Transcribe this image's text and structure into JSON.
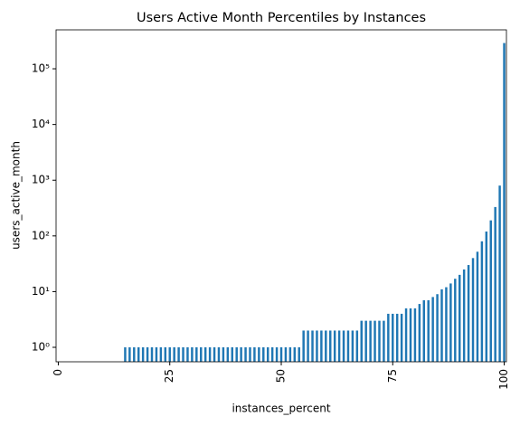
{
  "chart_data": {
    "type": "bar",
    "title": "Users Active Month Percentiles by Instances",
    "x_label": "instances_percent",
    "y_label": "users_active_month",
    "categories": [
      "0",
      null,
      null,
      null,
      null,
      null,
      null,
      null,
      null,
      null,
      null,
      null,
      null,
      null,
      null,
      null,
      null,
      null,
      null,
      null,
      null,
      null,
      null,
      null,
      null,
      "25",
      null,
      null,
      null,
      null,
      null,
      null,
      null,
      null,
      null,
      null,
      null,
      null,
      null,
      null,
      null,
      null,
      null,
      null,
      null,
      null,
      null,
      null,
      null,
      null,
      "50",
      null,
      null,
      null,
      null,
      null,
      null,
      null,
      null,
      null,
      null,
      null,
      null,
      null,
      null,
      null,
      null,
      null,
      null,
      null,
      null,
      null,
      null,
      null,
      null,
      "75",
      null,
      null,
      null,
      null,
      null,
      null,
      null,
      null,
      null,
      null,
      null,
      null,
      null,
      null,
      null,
      null,
      null,
      null,
      null,
      null,
      null,
      null,
      null,
      null,
      "100"
    ],
    "values": [
      null,
      null,
      null,
      null,
      null,
      null,
      null,
      null,
      null,
      null,
      null,
      null,
      null,
      null,
      null,
      1,
      1,
      1,
      1,
      1,
      1,
      1,
      1,
      1,
      1,
      1,
      1,
      1,
      1,
      1,
      1,
      1,
      1,
      1,
      1,
      1,
      1,
      1,
      1,
      1,
      1,
      1,
      1,
      1,
      1,
      1,
      1,
      1,
      1,
      1,
      1,
      1,
      1,
      1,
      1,
      2,
      2,
      2,
      2,
      2,
      2,
      2,
      2,
      2,
      2,
      2,
      2,
      2,
      3,
      3,
      3,
      3,
      3,
      3,
      4,
      4,
      4,
      4,
      5,
      5,
      5,
      6,
      7,
      7,
      8,
      9,
      11,
      12,
      14,
      17,
      20,
      25,
      30,
      40,
      52,
      80,
      120,
      190,
      330,
      800,
      290000
    ],
    "color": "#1f77b4",
    "log_y": true,
    "ylim": [
      0.55,
      500000
    ],
    "yticks": [
      {
        "value": 1,
        "label": "10⁰"
      },
      {
        "value": 10,
        "label": "10¹"
      },
      {
        "value": 100,
        "label": "10²"
      },
      {
        "value": 1000,
        "label": "10³"
      },
      {
        "value": 10000,
        "label": "10⁴"
      },
      {
        "value": 100000,
        "label": "10⁵"
      }
    ]
  }
}
